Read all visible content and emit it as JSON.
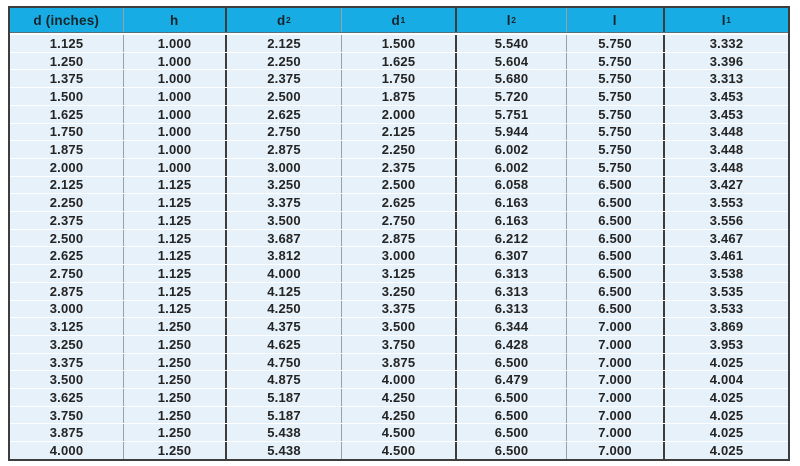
{
  "chart_data": {
    "type": "table",
    "title": "",
    "columns": [
      {
        "name": "d (inches)",
        "base": "d (inches)",
        "sub": ""
      },
      {
        "name": "h",
        "base": "h",
        "sub": ""
      },
      {
        "name": "d2",
        "base": "d",
        "sub": "2"
      },
      {
        "name": "d1",
        "base": "d",
        "sub": "1"
      },
      {
        "name": "l2",
        "base": "l",
        "sub": "2"
      },
      {
        "name": "l",
        "base": "l",
        "sub": ""
      },
      {
        "name": "l1",
        "base": "l",
        "sub": "1"
      }
    ],
    "rows": [
      [
        "1.125",
        "1.000",
        "2.125",
        "1.500",
        "5.540",
        "5.750",
        "3.332"
      ],
      [
        "1.250",
        "1.000",
        "2.250",
        "1.625",
        "5.604",
        "5.750",
        "3.396"
      ],
      [
        "1.375",
        "1.000",
        "2.375",
        "1.750",
        "5.680",
        "5.750",
        "3.313"
      ],
      [
        "1.500",
        "1.000",
        "2.500",
        "1.875",
        "5.720",
        "5.750",
        "3.453"
      ],
      [
        "1.625",
        "1.000",
        "2.625",
        "2.000",
        "5.751",
        "5.750",
        "3.453"
      ],
      [
        "1.750",
        "1.000",
        "2.750",
        "2.125",
        "5.944",
        "5.750",
        "3.448"
      ],
      [
        "1.875",
        "1.000",
        "2.875",
        "2.250",
        "6.002",
        "5.750",
        "3.448"
      ],
      [
        "2.000",
        "1.000",
        "3.000",
        "2.375",
        "6.002",
        "5.750",
        "3.448"
      ],
      [
        "2.125",
        "1.125",
        "3.250",
        "2.500",
        "6.058",
        "6.500",
        "3.427"
      ],
      [
        "2.250",
        "1.125",
        "3.375",
        "2.625",
        "6.163",
        "6.500",
        "3.553"
      ],
      [
        "2.375",
        "1.125",
        "3.500",
        "2.750",
        "6.163",
        "6.500",
        "3.556"
      ],
      [
        "2.500",
        "1.125",
        "3.687",
        "2.875",
        "6.212",
        "6.500",
        "3.467"
      ],
      [
        "2.625",
        "1.125",
        "3.812",
        "3.000",
        "6.307",
        "6.500",
        "3.461"
      ],
      [
        "2.750",
        "1.125",
        "4.000",
        "3.125",
        "6.313",
        "6.500",
        "3.538"
      ],
      [
        "2.875",
        "1.125",
        "4.125",
        "3.250",
        "6.313",
        "6.500",
        "3.535"
      ],
      [
        "3.000",
        "1.125",
        "4.250",
        "3.375",
        "6.313",
        "6.500",
        "3.533"
      ],
      [
        "3.125",
        "1.250",
        "4.375",
        "3.500",
        "6.344",
        "7.000",
        "3.869"
      ],
      [
        "3.250",
        "1.250",
        "4.625",
        "3.750",
        "6.428",
        "7.000",
        "3.953"
      ],
      [
        "3.375",
        "1.250",
        "4.750",
        "3.875",
        "6.500",
        "7.000",
        "4.025"
      ],
      [
        "3.500",
        "1.250",
        "4.875",
        "4.000",
        "6.479",
        "7.000",
        "4.004"
      ],
      [
        "3.625",
        "1.250",
        "5.187",
        "4.250",
        "6.500",
        "7.000",
        "4.025"
      ],
      [
        "3.750",
        "1.250",
        "5.187",
        "4.250",
        "6.500",
        "7.000",
        "4.025"
      ],
      [
        "3.875",
        "1.250",
        "5.438",
        "4.500",
        "6.500",
        "7.000",
        "4.025"
      ],
      [
        "4.000",
        "1.250",
        "5.438",
        "4.500",
        "6.500",
        "7.000",
        "4.025"
      ]
    ],
    "layout": {
      "grid": "on",
      "row_striping": "uniform light blue rows with white hairline dividers",
      "thick_column_dividers_after": [
        "h",
        "d1",
        "l"
      ]
    }
  },
  "colors": {
    "header_bg": "#17ade4",
    "header_text": "#17242b",
    "row_bg": "#e6f1f9",
    "row_divider": "#ffffff",
    "thin_column_line": "#93a2ac",
    "thick_column_line": "#3d3d3d",
    "outer_border": "#3d3d3d",
    "body_text": "#242424"
  }
}
